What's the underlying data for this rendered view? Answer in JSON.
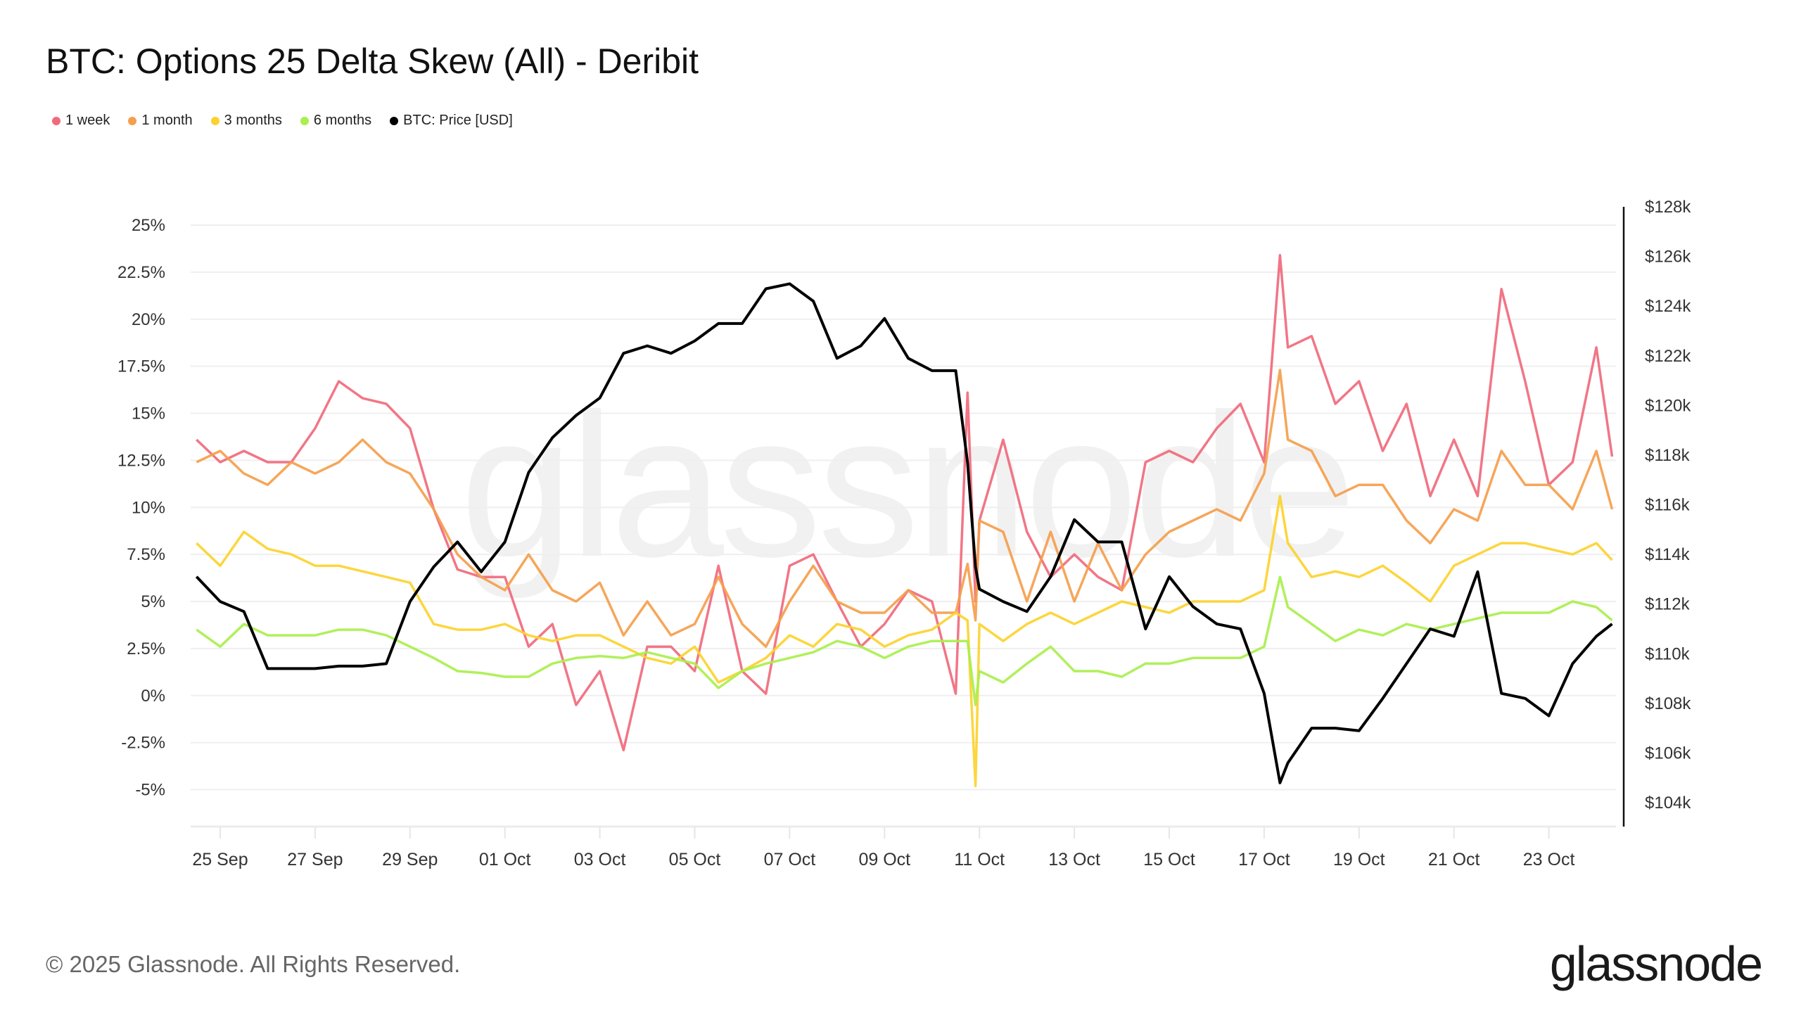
{
  "title": "BTC: Options 25 Delta Skew (All) - Deribit",
  "footer": {
    "copyright": "© 2025 Glassnode. All Rights Reserved.",
    "logo": "glassnode",
    "watermark": "glassnode"
  },
  "chart_data": {
    "type": "line",
    "title": "BTC: Options 25 Delta Skew (All) - Deribit",
    "legend_placement": "top-left",
    "grid": true,
    "y_left": {
      "ticks": [
        "25%",
        "22.5%",
        "20%",
        "17.5%",
        "15%",
        "12.5%",
        "10%",
        "7.5%",
        "5%",
        "2.5%",
        "0%",
        "-2.5%",
        "-5%"
      ],
      "range": [
        -5,
        25
      ],
      "unit": "%"
    },
    "y_right": {
      "ticks": [
        "$128k",
        "$126k",
        "$124k",
        "$122k",
        "$120k",
        "$118k",
        "$116k",
        "$114k",
        "$112k",
        "$110k",
        "$108k",
        "$106k",
        "$104k"
      ],
      "range": [
        104,
        128
      ],
      "unit": "USD thousands"
    },
    "x_ticks": [
      "25 Sep",
      "27 Sep",
      "29 Sep",
      "01 Oct",
      "03 Oct",
      "05 Oct",
      "07 Oct",
      "09 Oct",
      "11 Oct",
      "13 Oct",
      "15 Oct",
      "17 Oct",
      "19 Oct",
      "21 Oct",
      "23 Oct"
    ],
    "x_tick_dates": [
      "2025-09-25",
      "2025-09-27",
      "2025-09-29",
      "2025-10-01",
      "2025-10-03",
      "2025-10-05",
      "2025-10-07",
      "2025-10-09",
      "2025-10-11",
      "2025-10-13",
      "2025-10-15",
      "2025-10-17",
      "2025-10-19",
      "2025-10-21",
      "2025-10-23"
    ],
    "x": [
      "2025-09-24 12:00",
      "2025-09-25 00:00",
      "2025-09-25 12:00",
      "2025-09-26 00:00",
      "2025-09-26 12:00",
      "2025-09-27 00:00",
      "2025-09-27 12:00",
      "2025-09-28 00:00",
      "2025-09-28 12:00",
      "2025-09-29 00:00",
      "2025-09-29 12:00",
      "2025-09-30 00:00",
      "2025-09-30 12:00",
      "2025-10-01 00:00",
      "2025-10-01 12:00",
      "2025-10-02 00:00",
      "2025-10-02 12:00",
      "2025-10-03 00:00",
      "2025-10-03 12:00",
      "2025-10-04 00:00",
      "2025-10-04 12:00",
      "2025-10-05 00:00",
      "2025-10-05 12:00",
      "2025-10-06 00:00",
      "2025-10-06 12:00",
      "2025-10-07 00:00",
      "2025-10-07 12:00",
      "2025-10-08 00:00",
      "2025-10-08 12:00",
      "2025-10-09 00:00",
      "2025-10-09 12:00",
      "2025-10-10 00:00",
      "2025-10-10 12:00",
      "2025-10-10 18:00",
      "2025-10-10 22:00",
      "2025-10-11 00:00",
      "2025-10-11 12:00",
      "2025-10-12 00:00",
      "2025-10-12 12:00",
      "2025-10-13 00:00",
      "2025-10-13 12:00",
      "2025-10-14 00:00",
      "2025-10-14 12:00",
      "2025-10-15 00:00",
      "2025-10-15 12:00",
      "2025-10-16 00:00",
      "2025-10-16 12:00",
      "2025-10-17 00:00",
      "2025-10-17 08:00",
      "2025-10-17 12:00",
      "2025-10-18 00:00",
      "2025-10-18 12:00",
      "2025-10-19 00:00",
      "2025-10-19 12:00",
      "2025-10-20 00:00",
      "2025-10-20 12:00",
      "2025-10-21 00:00",
      "2025-10-21 12:00",
      "2025-10-22 00:00",
      "2025-10-22 12:00",
      "2025-10-23 00:00",
      "2025-10-23 12:00",
      "2025-10-24 00:00",
      "2025-10-24 08:00"
    ],
    "series": [
      {
        "name": "1 week",
        "axis": "left",
        "color": "#f06a7c",
        "values": [
          13.6,
          12.4,
          13,
          12.4,
          12.4,
          14.2,
          16.7,
          15.8,
          15.5,
          14.2,
          9.9,
          6.7,
          6.3,
          6.3,
          2.6,
          3.8,
          -0.5,
          1.3,
          -2.9,
          2.6,
          2.6,
          1.3,
          6.9,
          1.3,
          0.1,
          6.9,
          7.5,
          5,
          2.6,
          3.8,
          5.6,
          5,
          0.1,
          16.1,
          5,
          9.3,
          13.6,
          8.7,
          6.3,
          7.5,
          6.3,
          5.6,
          12.4,
          13,
          12.4,
          14.2,
          15.5,
          12.4,
          23.4,
          18.5,
          19.1,
          15.5,
          16.7,
          13,
          15.5,
          10.6,
          13.6,
          10.6,
          21.6,
          16.7,
          11.2,
          12.4,
          18.5,
          12.7
        ]
      },
      {
        "name": "1 month",
        "axis": "left",
        "color": "#f59e4c",
        "values": [
          12.4,
          13,
          11.8,
          11.2,
          12.4,
          11.8,
          12.4,
          13.6,
          12.4,
          11.8,
          9.9,
          7.5,
          6.3,
          5.6,
          7.5,
          5.6,
          5,
          6,
          3.2,
          5,
          3.2,
          3.8,
          6.3,
          3.8,
          2.6,
          5,
          6.9,
          5,
          4.4,
          4.4,
          5.6,
          4.4,
          4.4,
          7,
          4,
          9.3,
          8.7,
          5,
          8.7,
          5,
          8.1,
          5.6,
          7.5,
          8.7,
          9.3,
          9.9,
          9.3,
          11.8,
          17.3,
          13.6,
          13,
          10.6,
          11.2,
          11.2,
          9.3,
          8.1,
          9.9,
          9.3,
          13,
          11.2,
          11.2,
          9.9,
          13,
          9.9
        ]
      },
      {
        "name": "3 months",
        "axis": "left",
        "color": "#fcd22e",
        "values": [
          8.1,
          6.9,
          8.7,
          7.8,
          7.5,
          6.9,
          6.9,
          6.6,
          6.3,
          6,
          3.8,
          3.5,
          3.5,
          3.8,
          3.2,
          2.9,
          3.2,
          3.2,
          2.6,
          2,
          1.7,
          2.6,
          0.7,
          1.3,
          2,
          3.2,
          2.6,
          3.8,
          3.5,
          2.6,
          3.2,
          3.5,
          4.4,
          4,
          -4.8,
          3.8,
          2.9,
          3.8,
          4.4,
          3.8,
          4.4,
          5,
          4.7,
          4.4,
          5,
          5,
          5,
          5.6,
          10.6,
          8.1,
          6.3,
          6.6,
          6.3,
          6.9,
          6,
          5,
          6.9,
          7.5,
          8.1,
          8.1,
          7.8,
          7.5,
          8.1,
          7.2
        ]
      },
      {
        "name": "6 months",
        "axis": "left",
        "color": "#a9ef4d",
        "values": [
          3.5,
          2.6,
          3.8,
          3.2,
          3.2,
          3.2,
          3.5,
          3.5,
          3.2,
          2.6,
          2,
          1.3,
          1.2,
          1,
          1,
          1.7,
          2,
          2.1,
          2,
          2.3,
          2,
          1.7,
          0.4,
          1.3,
          1.7,
          2,
          2.3,
          2.9,
          2.6,
          2,
          2.6,
          2.9,
          2.9,
          2.9,
          -0.5,
          1.3,
          0.7,
          1.7,
          2.6,
          1.3,
          1.3,
          1,
          1.7,
          1.7,
          2,
          2,
          2,
          2.6,
          6.3,
          4.7,
          3.8,
          2.9,
          3.5,
          3.2,
          3.8,
          3.5,
          3.8,
          4.1,
          4.4,
          4.4,
          4.4,
          5,
          4.7,
          4
        ]
      },
      {
        "name": "BTC: Price [USD]",
        "axis": "right",
        "color": "#000000",
        "values": [
          113.1,
          112.1,
          111.7,
          109.4,
          109.4,
          109.4,
          109.5,
          109.5,
          109.6,
          112.1,
          113.5,
          114.5,
          113.3,
          114.5,
          117.3,
          118.7,
          119.6,
          120.3,
          122.1,
          122.4,
          122.1,
          122.6,
          123.3,
          123.3,
          124.7,
          124.9,
          124.2,
          121.9,
          122.4,
          123.5,
          121.9,
          121.4,
          121.4,
          117.7,
          113.5,
          112.6,
          112.1,
          111.7,
          113.1,
          115.4,
          114.5,
          114.5,
          111,
          113.1,
          111.9,
          111.2,
          111,
          108.4,
          104.8,
          105.6,
          107,
          107,
          106.9,
          108.2,
          109.6,
          111,
          110.7,
          113.3,
          108.4,
          108.2,
          107.5,
          109.6,
          110.7,
          111.2
        ]
      }
    ]
  }
}
